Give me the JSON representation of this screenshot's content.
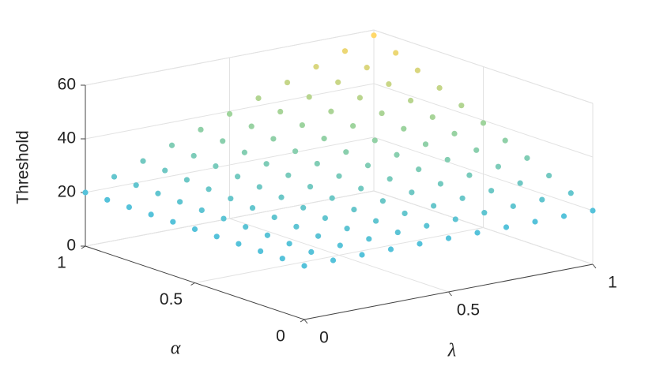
{
  "chart_data": {
    "type": "scatter3d",
    "xlabel": "λ",
    "ylabel": "α",
    "zlabel": "Threshold",
    "x": [
      0,
      0.1,
      0.2,
      0.3,
      0.4,
      0.5,
      0.6,
      0.7,
      0.8,
      0.9,
      1
    ],
    "y": [
      0,
      0.1,
      0.2,
      0.3,
      0.4,
      0.5,
      0.6,
      0.7,
      0.8,
      0.9,
      1
    ],
    "z": [
      [
        20,
        20,
        20,
        20,
        20,
        20,
        20,
        20,
        20,
        20,
        20
      ],
      [
        20,
        20.38,
        20.76,
        21.14,
        21.52,
        21.9,
        22.28,
        22.66,
        23.04,
        23.42,
        23.8
      ],
      [
        20,
        20.76,
        21.52,
        22.28,
        23.04,
        23.8,
        24.56,
        25.32,
        26.08,
        26.84,
        27.6
      ],
      [
        20,
        21.14,
        22.28,
        23.42,
        24.56,
        25.7,
        26.84,
        27.98,
        29.12,
        30.26,
        31.4
      ],
      [
        20,
        21.52,
        23.04,
        24.56,
        26.08,
        27.6,
        29.12,
        30.64,
        32.16,
        33.68,
        35.2
      ],
      [
        20,
        21.9,
        23.8,
        25.7,
        27.6,
        29.5,
        31.4,
        33.3,
        35.2,
        37.1,
        39
      ],
      [
        20,
        22.28,
        24.56,
        26.84,
        29.12,
        31.4,
        33.68,
        35.96,
        38.24,
        40.52,
        42.8
      ],
      [
        20,
        22.66,
        25.32,
        27.98,
        30.64,
        33.3,
        35.96,
        38.62,
        41.28,
        43.94,
        46.6
      ],
      [
        20,
        23.04,
        26.08,
        29.12,
        32.16,
        35.2,
        38.24,
        41.28,
        44.32,
        47.36,
        50.4
      ],
      [
        20,
        23.42,
        26.84,
        30.26,
        33.68,
        37.1,
        40.52,
        43.94,
        47.36,
        50.78,
        54.2
      ],
      [
        20,
        23.8,
        27.6,
        31.4,
        35.2,
        39,
        42.8,
        46.6,
        50.4,
        54.2,
        58
      ]
    ],
    "xlim": [
      0,
      1
    ],
    "xticks": [
      0,
      0.5,
      1
    ],
    "ylim": [
      0,
      1
    ],
    "yticks": [
      0,
      0.5,
      1
    ],
    "zlim": [
      0,
      60
    ],
    "zticks": [
      0,
      20,
      40,
      60
    ],
    "grid": true,
    "colors": [
      "#55c2da",
      "#9fd49c",
      "#ffd86a"
    ]
  }
}
